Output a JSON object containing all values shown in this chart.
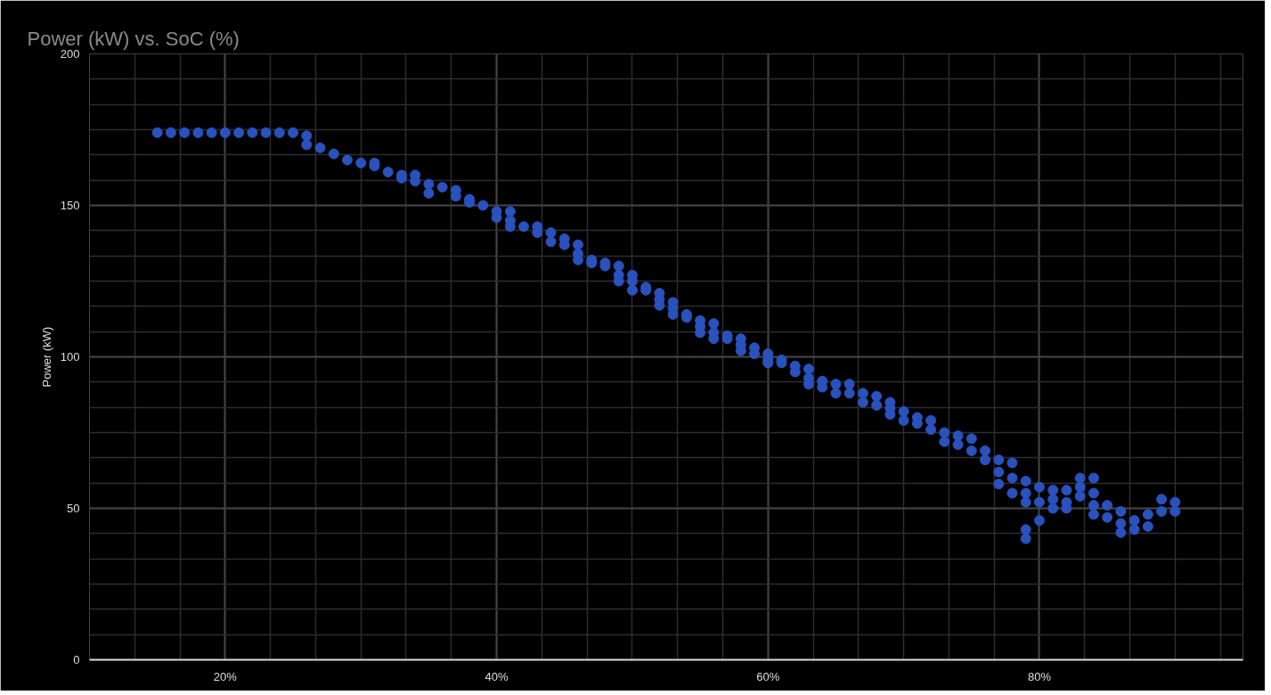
{
  "chart_data": {
    "type": "scatter",
    "title": "Power (kW) vs. SoC (%)",
    "ylabel": "Power (kW)",
    "xlim": [
      10,
      95
    ],
    "xticks": [
      {
        "value": 20,
        "label": "20%"
      },
      {
        "value": 40,
        "label": "40%"
      },
      {
        "value": 60,
        "label": "60%"
      },
      {
        "value": 80,
        "label": "80%"
      }
    ],
    "ylim": [
      0,
      200
    ],
    "yticks": [
      0,
      50,
      100,
      150,
      200
    ],
    "grid": true,
    "marker": "circle",
    "series": [
      {
        "color": "#2a52be",
        "x": [
          15,
          16,
          17,
          18,
          19,
          20,
          21,
          22,
          23,
          24,
          25,
          26,
          26,
          27,
          28,
          29,
          30,
          31,
          31,
          32,
          33,
          33,
          34,
          34,
          35,
          35,
          36,
          37,
          37,
          38,
          38,
          39,
          40,
          40,
          41,
          41,
          41,
          42,
          43,
          43,
          44,
          44,
          45,
          45,
          46,
          46,
          46,
          47,
          47,
          48,
          48,
          49,
          49,
          49,
          50,
          50,
          50,
          51,
          51,
          52,
          52,
          52,
          53,
          53,
          53,
          54,
          54,
          55,
          55,
          55,
          56,
          56,
          56,
          57,
          57,
          58,
          58,
          58,
          59,
          59,
          60,
          60,
          60,
          61,
          61,
          62,
          62,
          63,
          63,
          63,
          64,
          64,
          65,
          65,
          66,
          66,
          67,
          67,
          68,
          68,
          69,
          69,
          69,
          70,
          70,
          71,
          71,
          72,
          72,
          73,
          73,
          74,
          74,
          75,
          75,
          76,
          76,
          77,
          77,
          77,
          78,
          78,
          78,
          79,
          79,
          79,
          79,
          79,
          80,
          80,
          80,
          81,
          81,
          81,
          82,
          82,
          82,
          83,
          83,
          83,
          84,
          84,
          84,
          84,
          85,
          85,
          86,
          86,
          86,
          87,
          87,
          88,
          88,
          89,
          89,
          90,
          90
        ],
        "values": [
          174,
          174,
          174,
          174,
          174,
          174,
          174,
          174,
          174,
          174,
          174,
          173,
          170,
          169,
          167,
          165,
          164,
          164,
          163,
          161,
          160,
          159,
          160,
          158,
          157,
          154,
          156,
          155,
          153,
          152,
          151,
          150,
          148,
          146,
          148,
          145,
          143,
          143,
          143,
          141,
          141,
          138,
          139,
          137,
          137,
          134,
          132,
          132,
          131,
          131,
          130,
          130,
          127,
          125,
          127,
          125,
          122,
          123,
          122,
          121,
          119,
          117,
          118,
          116,
          114,
          114,
          113,
          112,
          110,
          108,
          111,
          108,
          106,
          107,
          106,
          106,
          104,
          102,
          103,
          101,
          101,
          99,
          98,
          99,
          98,
          97,
          95,
          96,
          93,
          91,
          92,
          90,
          91,
          88,
          91,
          88,
          88,
          85,
          87,
          84,
          85,
          83,
          81,
          82,
          79,
          80,
          78,
          79,
          76,
          75,
          72,
          74,
          71,
          73,
          69,
          69,
          66,
          66,
          62,
          58,
          65,
          60,
          55,
          59,
          55,
          52,
          43,
          40,
          57,
          52,
          46,
          56,
          53,
          50,
          56,
          52,
          50,
          60,
          57,
          54,
          60,
          55,
          51,
          48,
          51,
          47,
          49,
          45,
          42,
          46,
          43,
          48,
          44,
          53,
          49,
          52,
          49
        ]
      }
    ]
  }
}
